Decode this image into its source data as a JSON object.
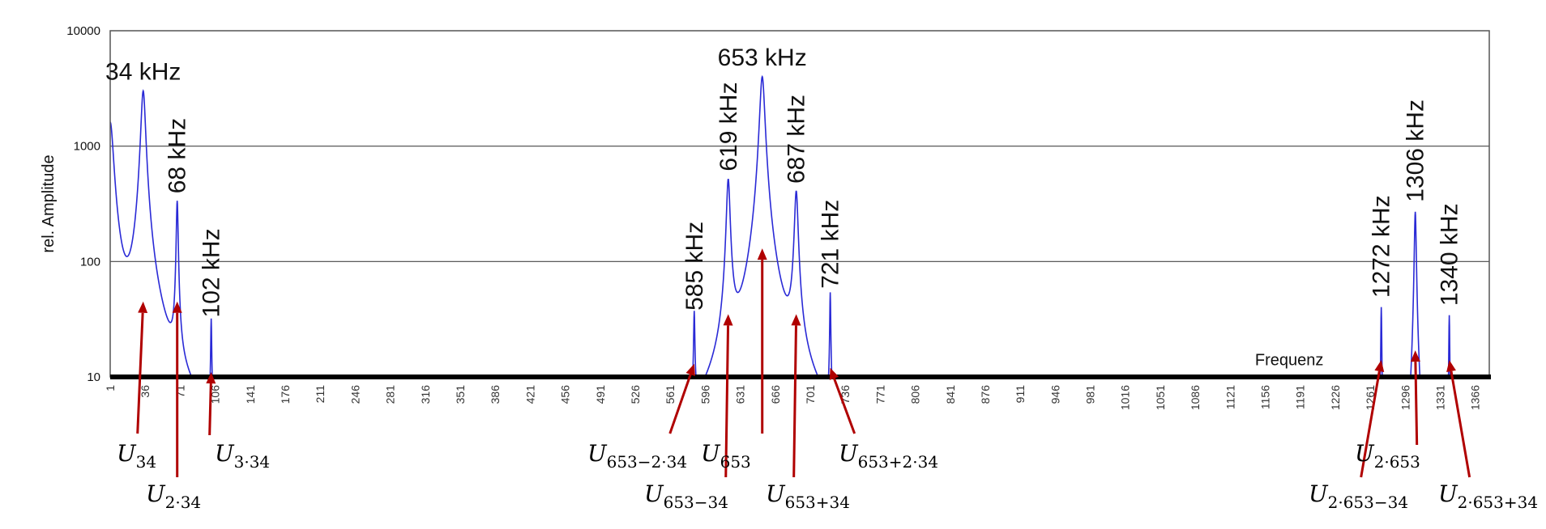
{
  "chart_data": {
    "type": "line",
    "title": "",
    "ylabel": "rel. Amplitude",
    "xlabel": "Frequenz",
    "yscale": "log",
    "ylim": [
      10,
      10000
    ],
    "xlim": [
      1,
      1380
    ],
    "yticks": [
      "10",
      "100",
      "1000",
      "10000"
    ],
    "xticks": [
      "1",
      "36",
      "71",
      "106",
      "141",
      "176",
      "211",
      "246",
      "281",
      "316",
      "351",
      "386",
      "421",
      "456",
      "491",
      "526",
      "561",
      "596",
      "631",
      "666",
      "701",
      "736",
      "771",
      "806",
      "841",
      "876",
      "911",
      "946",
      "981",
      "1016",
      "1051",
      "1086",
      "1121",
      "1156",
      "1191",
      "1226",
      "1261",
      "1296",
      "1331",
      "1366"
    ],
    "grid": "horizontal",
    "series_color": "#2a2ad6",
    "arrow_color": "#b00000",
    "peaks": [
      {
        "x": 34,
        "y": 3000,
        "label": "34 kHz",
        "orientation": "horizontal"
      },
      {
        "x": 68,
        "y": 320,
        "label": "68 kHz",
        "orientation": "vertical"
      },
      {
        "x": 102,
        "y": 27,
        "label": "102 kHz",
        "orientation": "vertical"
      },
      {
        "x": 585,
        "y": 31,
        "label": "585 kHz",
        "orientation": "vertical"
      },
      {
        "x": 619,
        "y": 500,
        "label": "619 kHz",
        "orientation": "vertical"
      },
      {
        "x": 653,
        "y": 4000,
        "label": "653 kHz",
        "orientation": "horizontal"
      },
      {
        "x": 687,
        "y": 390,
        "label": "687 kHz",
        "orientation": "vertical"
      },
      {
        "x": 721,
        "y": 48,
        "label": "721 kHz",
        "orientation": "vertical"
      },
      {
        "x": 1272,
        "y": 40,
        "label": "1272 kHz",
        "orientation": "vertical"
      },
      {
        "x": 1306,
        "y": 270,
        "label": "1306 kHz",
        "orientation": "vertical"
      },
      {
        "x": 1340,
        "y": 34,
        "label": "1340 kHz",
        "orientation": "vertical"
      }
    ],
    "components": [
      {
        "main": "U",
        "sub": "34",
        "x": 34,
        "y": 45
      },
      {
        "main": "U",
        "sub": "2·34",
        "x": 68,
        "y": 45
      },
      {
        "main": "U",
        "sub": "3·34",
        "x": 102,
        "y": 11
      },
      {
        "main": "U",
        "sub": "653−2·34",
        "x": 585,
        "y": 13
      },
      {
        "main": "U",
        "sub": "653−34",
        "x": 619,
        "y": 35
      },
      {
        "main": "U",
        "sub": "653",
        "x": 653,
        "y": 130
      },
      {
        "main": "U",
        "sub": "653+34",
        "x": 687,
        "y": 35
      },
      {
        "main": "U",
        "sub": "653+2·34",
        "x": 721,
        "y": 12
      },
      {
        "main": "U",
        "sub": "2·653−34",
        "x": 1272,
        "y": 14
      },
      {
        "main": "U",
        "sub": "2·653",
        "x": 1306,
        "y": 17
      },
      {
        "main": "U",
        "sub": "2·653+34",
        "x": 1340,
        "y": 14
      }
    ]
  }
}
